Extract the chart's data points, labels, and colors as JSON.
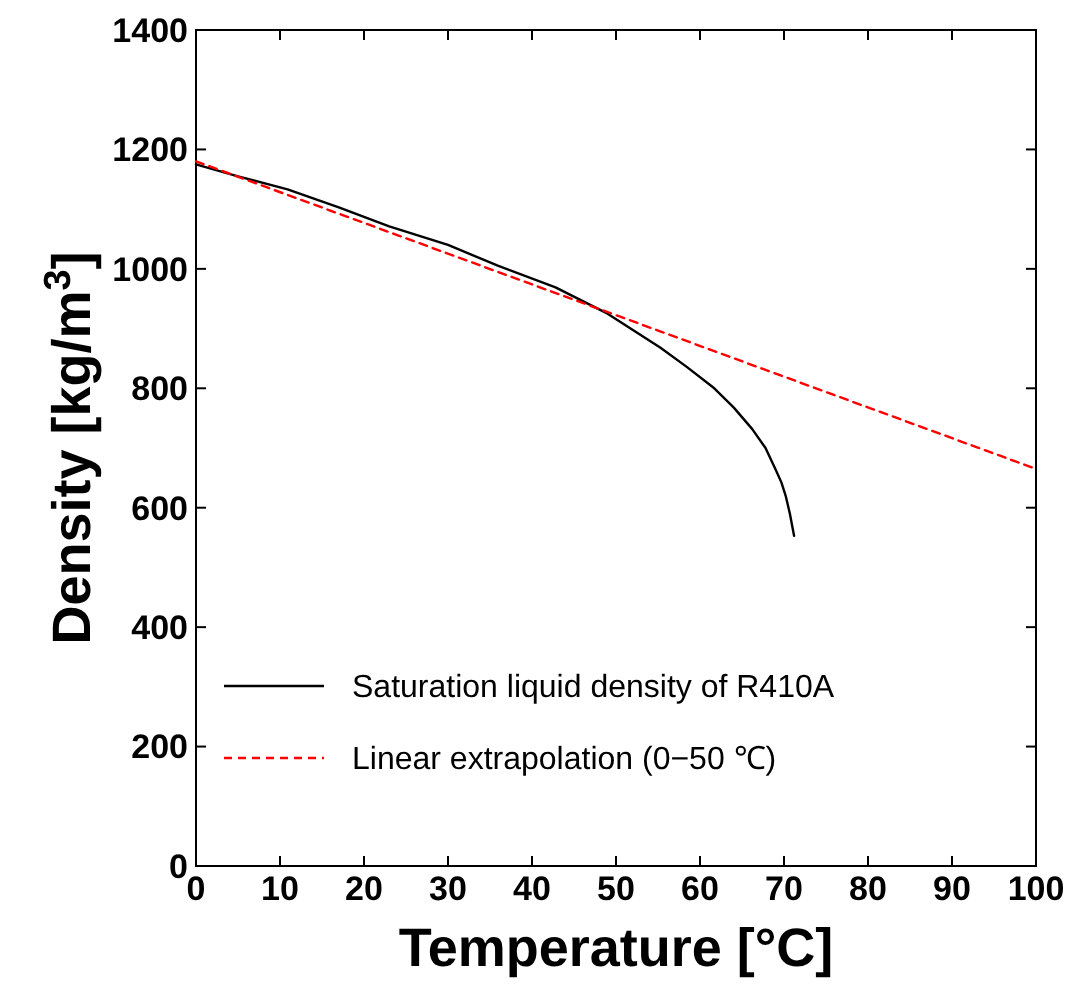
{
  "chart_data": {
    "type": "line",
    "xlabel": "Temperature [°C]",
    "ylabel": "Density [kg/m$^{3}$]",
    "xlim": [
      0,
      100
    ],
    "ylim": [
      0,
      1400
    ],
    "xticks": [
      0,
      10,
      20,
      30,
      40,
      50,
      60,
      70,
      80,
      90,
      100
    ],
    "yticks": [
      0,
      200,
      400,
      600,
      800,
      1000,
      1200,
      1400
    ],
    "grid": false,
    "legend": "bottom left",
    "series": [
      {
        "name": "Saturation liquid density of R410A",
        "color": "#000000",
        "line_style": "solid",
        "x": [
          0,
          5,
          10.9,
          17,
          23,
          30,
          36,
          42.8,
          49,
          55.3,
          58.5,
          61.7,
          64,
          66.2,
          67.8,
          69,
          69.7,
          70.2,
          70.7,
          71.2
        ],
        "values": [
          1175,
          1155,
          1133,
          1103,
          1071,
          1040,
          1005,
          969,
          925,
          868,
          835,
          800,
          768,
          732,
          700,
          664,
          642,
          620,
          590,
          553
        ]
      },
      {
        "name": "Linear extrapolation (0−50 ℃)",
        "color": "#ff0000",
        "line_style": "dashed",
        "x": [
          0,
          100
        ],
        "values": [
          1180,
          665
        ]
      }
    ]
  }
}
